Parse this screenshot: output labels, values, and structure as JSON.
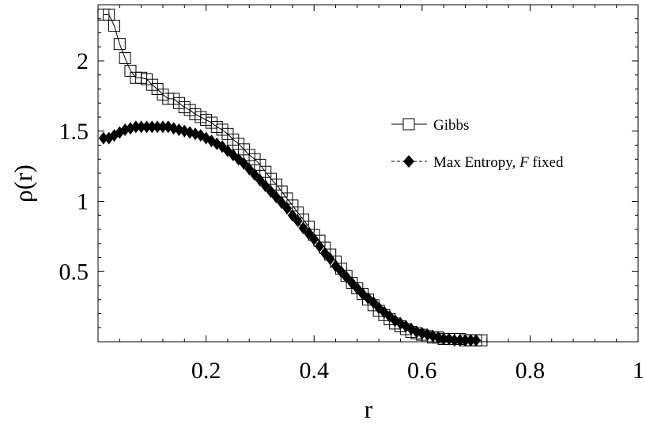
{
  "chart_data": {
    "type": "scatter",
    "xlabel": "r",
    "ylabel": "ρ(r)",
    "xlim": [
      0,
      1
    ],
    "ylim": [
      0,
      2.4
    ],
    "x_ticks": [
      "0.2",
      "0.4",
      "0.6",
      "0.8",
      "1"
    ],
    "x_tick_values": [
      0.2,
      0.4,
      0.6,
      0.8,
      1.0
    ],
    "y_ticks": [
      "0.5",
      "1",
      "1.5",
      "2"
    ],
    "y_tick_values": [
      0.5,
      1.0,
      1.5,
      2.0
    ],
    "grid": false,
    "legend_position": "right",
    "series": [
      {
        "name": "Gibbs",
        "marker": "open-square",
        "line": "solid",
        "color": "#000000",
        "x": [
          0.01,
          0.02,
          0.03,
          0.04,
          0.05,
          0.06,
          0.07,
          0.08,
          0.09,
          0.1,
          0.11,
          0.12,
          0.13,
          0.14,
          0.15,
          0.16,
          0.17,
          0.18,
          0.19,
          0.2,
          0.21,
          0.22,
          0.23,
          0.24,
          0.25,
          0.26,
          0.27,
          0.28,
          0.29,
          0.3,
          0.31,
          0.32,
          0.33,
          0.34,
          0.35,
          0.36,
          0.37,
          0.38,
          0.39,
          0.4,
          0.41,
          0.42,
          0.43,
          0.44,
          0.45,
          0.46,
          0.47,
          0.48,
          0.49,
          0.5,
          0.51,
          0.52,
          0.53,
          0.54,
          0.55,
          0.56,
          0.57,
          0.58,
          0.59,
          0.6,
          0.61,
          0.62,
          0.63,
          0.64,
          0.65,
          0.66,
          0.67,
          0.68,
          0.69,
          0.7,
          0.71
        ],
        "y": [
          2.33,
          2.33,
          2.25,
          2.12,
          2.02,
          1.93,
          1.88,
          1.88,
          1.87,
          1.83,
          1.8,
          1.76,
          1.73,
          1.73,
          1.7,
          1.67,
          1.65,
          1.62,
          1.6,
          1.58,
          1.56,
          1.53,
          1.51,
          1.48,
          1.44,
          1.41,
          1.37,
          1.33,
          1.3,
          1.26,
          1.21,
          1.16,
          1.12,
          1.07,
          1.02,
          0.97,
          0.92,
          0.87,
          0.82,
          0.76,
          0.72,
          0.67,
          0.62,
          0.57,
          0.52,
          0.47,
          0.42,
          0.38,
          0.34,
          0.3,
          0.26,
          0.22,
          0.19,
          0.16,
          0.13,
          0.11,
          0.09,
          0.07,
          0.06,
          0.05,
          0.04,
          0.03,
          0.03,
          0.02,
          0.02,
          0.02,
          0.02,
          0.01,
          0.01,
          0.01,
          0.01
        ]
      },
      {
        "name": "Max Entropy, F fixed",
        "marker": "filled-diamond",
        "line": "dashed",
        "color": "#000000",
        "x": [
          0.01,
          0.02,
          0.03,
          0.04,
          0.05,
          0.06,
          0.07,
          0.08,
          0.09,
          0.1,
          0.11,
          0.12,
          0.13,
          0.14,
          0.15,
          0.16,
          0.17,
          0.18,
          0.19,
          0.2,
          0.21,
          0.22,
          0.23,
          0.24,
          0.25,
          0.26,
          0.27,
          0.28,
          0.29,
          0.3,
          0.31,
          0.32,
          0.33,
          0.34,
          0.35,
          0.36,
          0.37,
          0.38,
          0.39,
          0.4,
          0.41,
          0.42,
          0.43,
          0.44,
          0.45,
          0.46,
          0.47,
          0.48,
          0.49,
          0.5,
          0.51,
          0.52,
          0.53,
          0.54,
          0.55,
          0.56,
          0.57,
          0.58,
          0.59,
          0.6,
          0.61,
          0.62,
          0.63,
          0.64,
          0.65,
          0.66,
          0.67,
          0.68,
          0.69,
          0.7
        ],
        "y": [
          1.45,
          1.45,
          1.47,
          1.49,
          1.51,
          1.52,
          1.53,
          1.53,
          1.53,
          1.53,
          1.53,
          1.53,
          1.53,
          1.52,
          1.51,
          1.5,
          1.49,
          1.48,
          1.47,
          1.45,
          1.43,
          1.41,
          1.39,
          1.36,
          1.33,
          1.3,
          1.27,
          1.23,
          1.19,
          1.15,
          1.11,
          1.07,
          1.03,
          0.99,
          0.95,
          0.9,
          0.86,
          0.81,
          0.77,
          0.73,
          0.68,
          0.63,
          0.59,
          0.54,
          0.5,
          0.46,
          0.42,
          0.38,
          0.34,
          0.31,
          0.28,
          0.24,
          0.21,
          0.18,
          0.15,
          0.13,
          0.11,
          0.09,
          0.07,
          0.06,
          0.05,
          0.04,
          0.03,
          0.02,
          0.02,
          0.01,
          0.01,
          0.01,
          0.01,
          0.01
        ]
      }
    ]
  },
  "legend": {
    "items": [
      {
        "label_main": "Gibbs",
        "label_italic": "",
        "label_tail": ""
      },
      {
        "label_main": "Max Entropy, ",
        "label_italic": "F",
        "label_tail": " fixed"
      }
    ]
  }
}
